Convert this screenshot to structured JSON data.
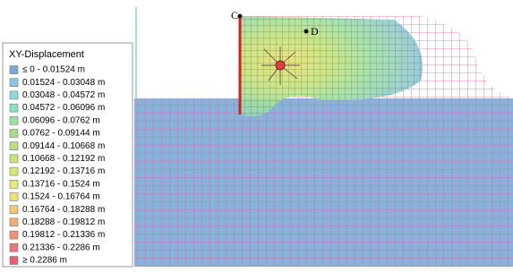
{
  "legend": {
    "title": "XY-Displacement",
    "items": [
      {
        "label": "≤ 0 - 0.01524 m",
        "color": "#7fa8d8"
      },
      {
        "label": "0.01524 - 0.03048 m",
        "color": "#8ec3e6"
      },
      {
        "label": "0.03048 - 0.04572 m",
        "color": "#8fd8e0"
      },
      {
        "label": "0.04572 - 0.06096 m",
        "color": "#8de0c8"
      },
      {
        "label": "0.06096 - 0.0762 m",
        "color": "#9ce0a6"
      },
      {
        "label": "0.0762 - 0.09144 m",
        "color": "#a6dc8c"
      },
      {
        "label": "0.09144 - 0.10668 m",
        "color": "#b6e07c"
      },
      {
        "label": "0.10668 - 0.12192 m",
        "color": "#c8e47a"
      },
      {
        "label": "0.12192 - 0.13716 m",
        "color": "#d8e878"
      },
      {
        "label": "0.13716 - 0.1524 m",
        "color": "#e6ea7a"
      },
      {
        "label": "0.1524 - 0.16764 m",
        "color": "#f0e07a"
      },
      {
        "label": "0.16764 - 0.18288 m",
        "color": "#f2c87a"
      },
      {
        "label": "0.18288 - 0.19812 m",
        "color": "#f0ae7a"
      },
      {
        "label": "0.19812 - 0.21336 m",
        "color": "#ec947a"
      },
      {
        "label": "0.21336 - 0.2286 m",
        "color": "#e8787a"
      },
      {
        "label": "≥ 0.2286 m",
        "color": "#e86070"
      }
    ]
  },
  "points": [
    {
      "label": "C"
    },
    {
      "label": "D"
    }
  ]
}
